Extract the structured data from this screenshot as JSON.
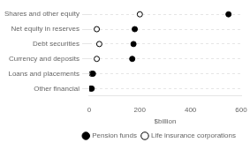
{
  "chart_data": {
    "type": "dot",
    "orientation": "horizontal",
    "categories": [
      "Shares and other equity",
      "Net equity in reserves",
      "Debt securities",
      "Currency and deposits",
      "Loans and placements",
      "Other financial"
    ],
    "series": [
      {
        "name": "Pension funds",
        "color": "#000000",
        "marker": "circle",
        "values": [
          550,
          180,
          175,
          170,
          15,
          10
        ]
      },
      {
        "name": "Life insurance corporations",
        "color": "#000000",
        "marker": "circle_open",
        "values": [
          200,
          30,
          40,
          30,
          10,
          5
        ]
      }
    ],
    "xlabel": "$billion",
    "xlim": [
      0,
      600
    ],
    "xticks": [
      0,
      200,
      400,
      600
    ],
    "grid": "y",
    "legend": "lower right"
  }
}
